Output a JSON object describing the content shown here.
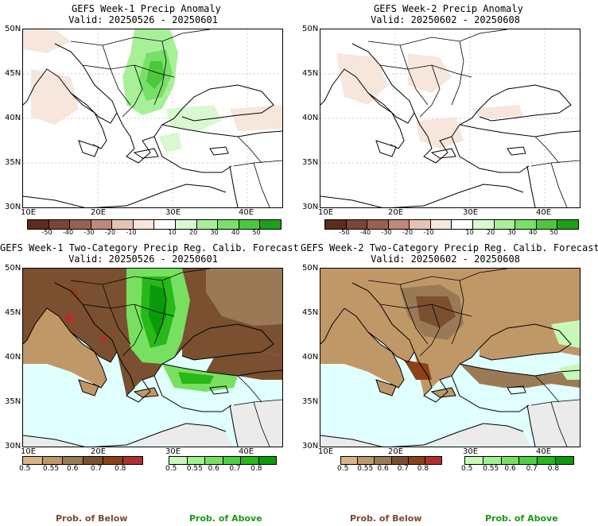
{
  "panels": {
    "p1": {
      "title": "GEFS Week-1 Precip Anomaly",
      "valid": "Valid: 20250526 - 20250601"
    },
    "p2": {
      "title": "GEFS Week-2 Precip Anomaly",
      "valid": "Valid: 20250602 - 20250608"
    },
    "p3": {
      "title": "GEFS Week-1 Two-Category Precip Reg. Calib. Forecast",
      "valid": "Valid: 20250526 - 20250601"
    },
    "p4": {
      "title": "GEFS Week-2 Two-Category Precip Reg. Calib. Forecast",
      "valid": "Valid: 20250602 - 20250608"
    }
  },
  "axes": {
    "lat_labels": [
      "50N",
      "45N",
      "40N",
      "35N",
      "30N"
    ],
    "lon_labels": [
      "10E",
      "20E",
      "30E",
      "40E"
    ]
  },
  "anomaly_colorbar": {
    "colors": [
      "#5a2d1e",
      "#7a4535",
      "#9a6050",
      "#c08878",
      "#e8c2b0",
      "#f6e6dc",
      "#ffffff",
      "#d8f8d0",
      "#a8f098",
      "#78e068",
      "#4cc83c",
      "#1ea01a"
    ],
    "ticks": [
      "-50",
      "-40",
      "-30",
      "-20",
      "-10",
      "10",
      "20",
      "30",
      "40",
      "50"
    ]
  },
  "below_colorbar": {
    "colors": [
      "#d8b588",
      "#c09868",
      "#9a7a56",
      "#7a5030",
      "#8c4218",
      "#b03030"
    ],
    "ticks": [
      "0.5",
      "0.55",
      "0.6",
      "0.7",
      "0.8"
    ]
  },
  "above_colorbar": {
    "colors": [
      "#c8f8b8",
      "#a0f090",
      "#78e060",
      "#50d040",
      "#28b818",
      "#0a9a0a"
    ],
    "ticks": [
      "0.5",
      "0.55",
      "0.6",
      "0.7",
      "0.8"
    ]
  },
  "legend": {
    "below": "Prob. of Below",
    "above": "Prob. of Above",
    "below_color": "#7a4a2e",
    "above_color": "#1a9a1a"
  },
  "colors": {
    "sea": "#e0ffff",
    "land_none": "#ebebeb"
  }
}
